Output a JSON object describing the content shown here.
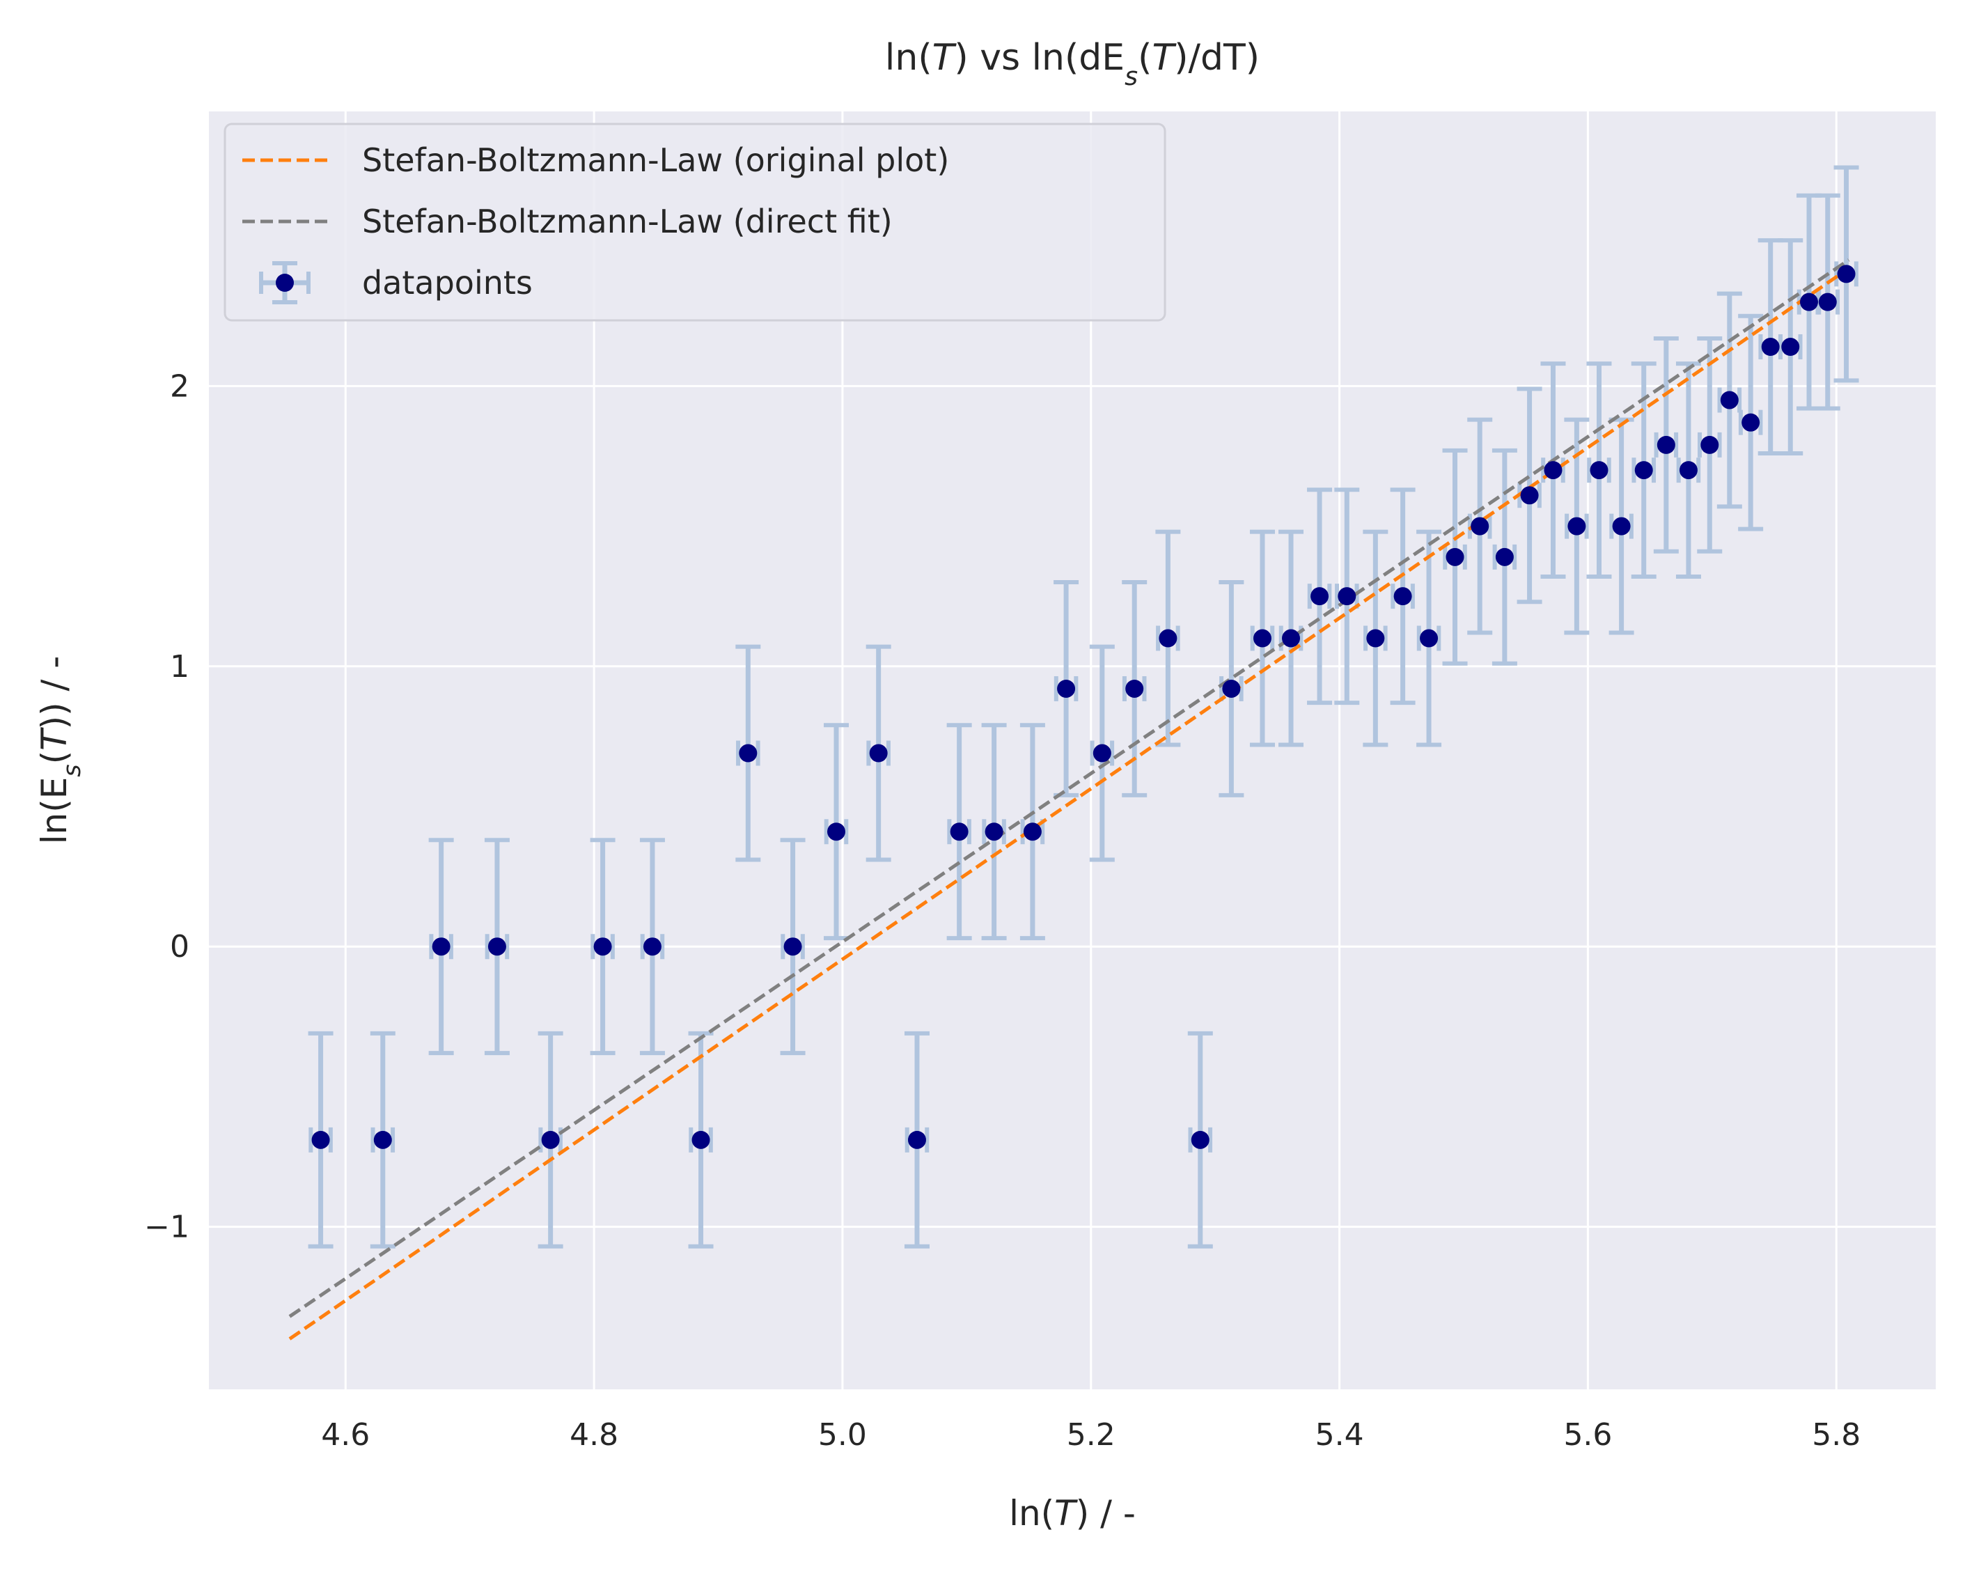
{
  "chart_data": {
    "type": "scatter",
    "title": "ln(T) vs ln(dE_s(T)/dT)",
    "xlabel": "ln(T) / -",
    "ylabel": "ln(E_s(T)) / -",
    "xlim": [
      4.49,
      5.88
    ],
    "ylim": [
      -1.58,
      2.98
    ],
    "xticks": [
      4.6,
      4.8,
      5.0,
      5.2,
      5.4,
      5.6,
      5.8
    ],
    "xtick_labels": [
      "4.6",
      "4.8",
      "5.0",
      "5.2",
      "5.4",
      "5.6",
      "5.8"
    ],
    "yticks": [
      -1,
      0,
      1,
      2
    ],
    "ytick_labels": [
      "−1",
      "0",
      "1",
      "2"
    ],
    "grid": true,
    "legend_position": "top-left",
    "series": [
      {
        "name": "Stefan-Boltzmann-Law (original plot)",
        "kind": "line",
        "style": "dashed",
        "color": "#ff7f0e",
        "x": [
          4.555,
          5.81
        ],
        "y": [
          -1.4,
          2.42
        ]
      },
      {
        "name": "Stefan-Boltzmann-Law (direct fit)",
        "kind": "line",
        "style": "dashed",
        "color": "#808080",
        "x": [
          4.555,
          5.81
        ],
        "y": [
          -1.32,
          2.45
        ]
      },
      {
        "name": "datapoints",
        "kind": "errorbar",
        "marker_color": "#000080",
        "errorbar_color": "#b0c4de",
        "x": [
          4.58,
          4.63,
          4.677,
          4.722,
          4.765,
          4.807,
          4.847,
          4.886,
          4.924,
          4.96,
          4.995,
          5.029,
          5.06,
          5.094,
          5.122,
          5.153,
          5.18,
          5.209,
          5.235,
          5.262,
          5.288,
          5.313,
          5.338,
          5.361,
          5.384,
          5.406,
          5.429,
          5.451,
          5.472,
          5.493,
          5.513,
          5.533,
          5.553,
          5.572,
          5.591,
          5.609,
          5.627,
          5.645,
          5.663,
          5.681,
          5.698,
          5.714,
          5.731,
          5.747,
          5.763,
          5.778,
          5.793,
          5.808
        ],
        "y": [
          -0.69,
          -0.69,
          0.0,
          0.0,
          -0.69,
          0.0,
          0.0,
          -0.69,
          0.69,
          0.0,
          0.41,
          0.69,
          -0.69,
          0.41,
          0.41,
          0.41,
          0.92,
          0.69,
          0.92,
          1.1,
          -0.69,
          0.92,
          1.1,
          1.1,
          1.25,
          1.25,
          1.1,
          1.25,
          1.1,
          1.39,
          1.5,
          1.39,
          1.61,
          1.7,
          1.5,
          1.7,
          1.5,
          1.7,
          1.79,
          1.7,
          1.79,
          1.95,
          1.87,
          2.14,
          2.14,
          2.3,
          2.3,
          2.4
        ],
        "yerr": [
          0.38,
          0.38,
          0.38,
          0.38,
          0.38,
          0.38,
          0.38,
          0.38,
          0.38,
          0.38,
          0.38,
          0.38,
          0.38,
          0.38,
          0.38,
          0.38,
          0.38,
          0.38,
          0.38,
          0.38,
          0.38,
          0.38,
          0.38,
          0.38,
          0.38,
          0.38,
          0.38,
          0.38,
          0.38,
          0.38,
          0.38,
          0.38,
          0.38,
          0.38,
          0.38,
          0.38,
          0.38,
          0.38,
          0.38,
          0.38,
          0.38,
          0.38,
          0.38,
          0.38,
          0.38,
          0.38,
          0.38,
          0.38
        ],
        "xerr": [
          0.008,
          0.008,
          0.008,
          0.008,
          0.008,
          0.008,
          0.008,
          0.008,
          0.008,
          0.008,
          0.008,
          0.008,
          0.008,
          0.008,
          0.008,
          0.008,
          0.008,
          0.008,
          0.008,
          0.008,
          0.008,
          0.008,
          0.008,
          0.008,
          0.008,
          0.008,
          0.008,
          0.008,
          0.008,
          0.008,
          0.008,
          0.008,
          0.008,
          0.008,
          0.008,
          0.008,
          0.008,
          0.008,
          0.008,
          0.008,
          0.008,
          0.008,
          0.008,
          0.008,
          0.008,
          0.008,
          0.008,
          0.008
        ]
      }
    ]
  }
}
